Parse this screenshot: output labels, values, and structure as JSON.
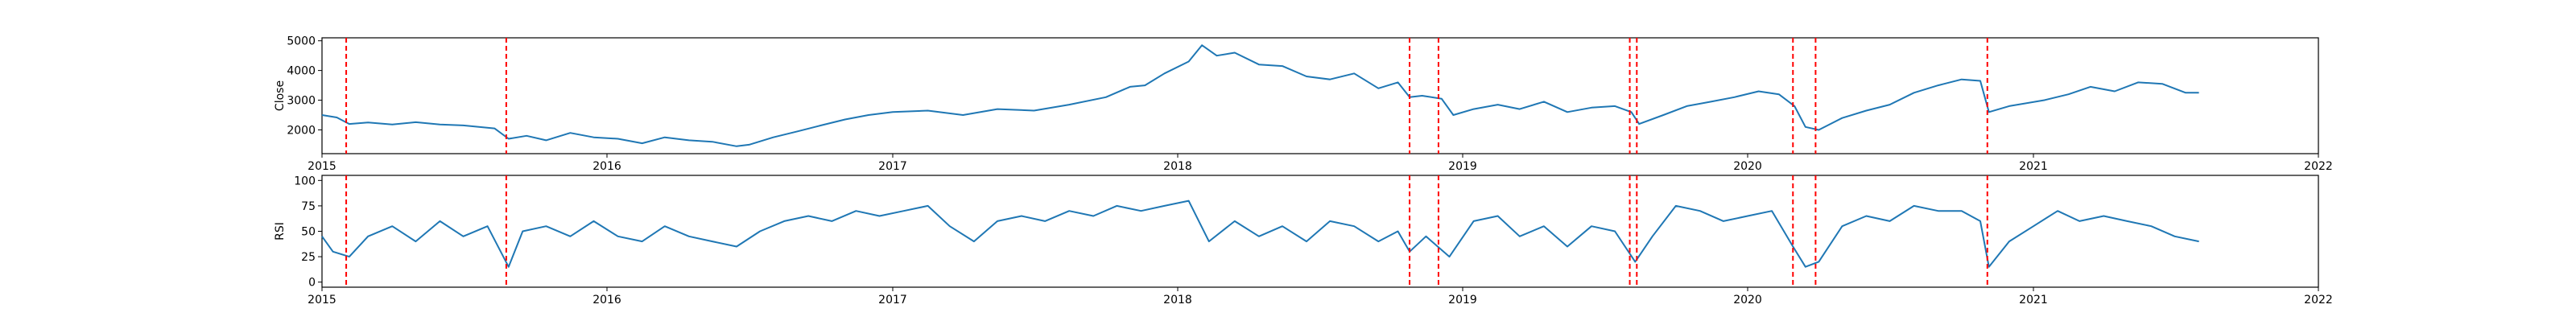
{
  "chart_data": [
    {
      "type": "line",
      "title": "",
      "xlabel": "",
      "ylabel": "Close",
      "xlim": [
        "2015-01-01",
        "2022-01-01"
      ],
      "ylim": [
        1200,
        5100
      ],
      "x_ticks": [
        "2015",
        "2016",
        "2017",
        "2018",
        "2019",
        "2020",
        "2021",
        "2022"
      ],
      "y_ticks": [
        2000,
        3000,
        4000,
        5000
      ],
      "grid": false,
      "line_color": "#1f77b4",
      "series": [
        {
          "points": [
            [
              "2015-01-01",
              2500
            ],
            [
              "2015-01-20",
              2420
            ],
            [
              "2015-02-05",
              2200
            ],
            [
              "2015-03-01",
              2250
            ],
            [
              "2015-04-01",
              2180
            ],
            [
              "2015-05-01",
              2260
            ],
            [
              "2015-06-01",
              2180
            ],
            [
              "2015-07-01",
              2150
            ],
            [
              "2015-08-10",
              2050
            ],
            [
              "2015-08-28",
              1700
            ],
            [
              "2015-09-20",
              1800
            ],
            [
              "2015-10-15",
              1650
            ],
            [
              "2015-11-15",
              1900
            ],
            [
              "2015-12-15",
              1750
            ],
            [
              "2016-01-15",
              1700
            ],
            [
              "2016-02-15",
              1550
            ],
            [
              "2016-03-15",
              1750
            ],
            [
              "2016-04-15",
              1650
            ],
            [
              "2016-05-15",
              1600
            ],
            [
              "2016-06-15",
              1450
            ],
            [
              "2016-07-01",
              1500
            ],
            [
              "2016-08-01",
              1750
            ],
            [
              "2016-09-01",
              1950
            ],
            [
              "2016-10-01",
              2150
            ],
            [
              "2016-11-01",
              2350
            ],
            [
              "2016-12-01",
              2500
            ],
            [
              "2017-01-01",
              2600
            ],
            [
              "2017-02-15",
              2650
            ],
            [
              "2017-04-01",
              2500
            ],
            [
              "2017-05-15",
              2700
            ],
            [
              "2017-07-01",
              2650
            ],
            [
              "2017-08-15",
              2850
            ],
            [
              "2017-10-01",
              3100
            ],
            [
              "2017-11-01",
              3450
            ],
            [
              "2017-11-20",
              3500
            ],
            [
              "2017-12-15",
              3900
            ],
            [
              "2018-01-15",
              4300
            ],
            [
              "2018-02-01",
              4850
            ],
            [
              "2018-02-20",
              4500
            ],
            [
              "2018-03-15",
              4600
            ],
            [
              "2018-04-15",
              4200
            ],
            [
              "2018-05-15",
              4150
            ],
            [
              "2018-06-15",
              3800
            ],
            [
              "2018-07-15",
              3700
            ],
            [
              "2018-08-15",
              3900
            ],
            [
              "2018-09-15",
              3400
            ],
            [
              "2018-10-10",
              3600
            ],
            [
              "2018-10-25",
              3100
            ],
            [
              "2018-11-10",
              3150
            ],
            [
              "2018-12-05",
              3050
            ],
            [
              "2018-12-20",
              2500
            ],
            [
              "2019-01-15",
              2700
            ],
            [
              "2019-02-15",
              2850
            ],
            [
              "2019-03-15",
              2700
            ],
            [
              "2019-04-15",
              2950
            ],
            [
              "2019-05-15",
              2600
            ],
            [
              "2019-06-15",
              2750
            ],
            [
              "2019-07-15",
              2800
            ],
            [
              "2019-08-05",
              2600
            ],
            [
              "2019-08-15",
              2200
            ],
            [
              "2019-09-15",
              2500
            ],
            [
              "2019-10-15",
              2800
            ],
            [
              "2019-11-15",
              2950
            ],
            [
              "2019-12-15",
              3100
            ],
            [
              "2020-01-15",
              3300
            ],
            [
              "2020-02-10",
              3200
            ],
            [
              "2020-03-01",
              2800
            ],
            [
              "2020-03-15",
              2100
            ],
            [
              "2020-04-01",
              2000
            ],
            [
              "2020-05-01",
              2400
            ],
            [
              "2020-06-01",
              2650
            ],
            [
              "2020-07-01",
              2850
            ],
            [
              "2020-08-01",
              3250
            ],
            [
              "2020-09-01",
              3500
            ],
            [
              "2020-10-01",
              3700
            ],
            [
              "2020-10-25",
              3650
            ],
            [
              "2020-11-05",
              2600
            ],
            [
              "2020-12-01",
              2800
            ],
            [
              "2021-01-15",
              3000
            ],
            [
              "2021-02-15",
              3200
            ],
            [
              "2021-03-15",
              3450
            ],
            [
              "2021-04-15",
              3300
            ],
            [
              "2021-05-15",
              3600
            ],
            [
              "2021-06-15",
              3550
            ],
            [
              "2021-07-15",
              3250
            ],
            [
              "2021-08-01",
              3250
            ]
          ]
        }
      ],
      "events": [
        "2015-02-01",
        "2015-08-25",
        "2018-10-25",
        "2018-12-01",
        "2019-08-03",
        "2019-08-12",
        "2020-02-28",
        "2020-03-28",
        "2020-11-03"
      ],
      "event_style": "red dashed vertical line"
    },
    {
      "type": "line",
      "title": "",
      "xlabel": "",
      "ylabel": "RSI",
      "xlim": [
        "2015-01-01",
        "2022-01-01"
      ],
      "ylim": [
        -5,
        105
      ],
      "x_ticks": [
        "2015",
        "2016",
        "2017",
        "2018",
        "2019",
        "2020",
        "2021",
        "2022"
      ],
      "y_ticks": [
        0,
        25,
        50,
        75,
        100
      ],
      "grid": false,
      "line_color": "#1f77b4",
      "series": [
        {
          "points": [
            [
              "2015-01-01",
              45
            ],
            [
              "2015-01-15",
              30
            ],
            [
              "2015-02-05",
              25
            ],
            [
              "2015-03-01",
              45
            ],
            [
              "2015-04-01",
              55
            ],
            [
              "2015-05-01",
              40
            ],
            [
              "2015-06-01",
              60
            ],
            [
              "2015-07-01",
              45
            ],
            [
              "2015-08-01",
              55
            ],
            [
              "2015-08-28",
              15
            ],
            [
              "2015-09-15",
              50
            ],
            [
              "2015-10-15",
              55
            ],
            [
              "2015-11-15",
              45
            ],
            [
              "2015-12-15",
              60
            ],
            [
              "2016-01-15",
              45
            ],
            [
              "2016-02-15",
              40
            ],
            [
              "2016-03-15",
              55
            ],
            [
              "2016-04-15",
              45
            ],
            [
              "2016-05-15",
              40
            ],
            [
              "2016-06-15",
              35
            ],
            [
              "2016-07-15",
              50
            ],
            [
              "2016-08-15",
              60
            ],
            [
              "2016-09-15",
              65
            ],
            [
              "2016-10-15",
              60
            ],
            [
              "2016-11-15",
              70
            ],
            [
              "2016-12-15",
              65
            ],
            [
              "2017-01-15",
              70
            ],
            [
              "2017-02-15",
              75
            ],
            [
              "2017-03-15",
              55
            ],
            [
              "2017-04-15",
              40
            ],
            [
              "2017-05-15",
              60
            ],
            [
              "2017-06-15",
              65
            ],
            [
              "2017-07-15",
              60
            ],
            [
              "2017-08-15",
              70
            ],
            [
              "2017-09-15",
              65
            ],
            [
              "2017-10-15",
              75
            ],
            [
              "2017-11-15",
              70
            ],
            [
              "2017-12-15",
              75
            ],
            [
              "2018-01-15",
              80
            ],
            [
              "2018-02-10",
              40
            ],
            [
              "2018-03-15",
              60
            ],
            [
              "2018-04-15",
              45
            ],
            [
              "2018-05-15",
              55
            ],
            [
              "2018-06-15",
              40
            ],
            [
              "2018-07-15",
              60
            ],
            [
              "2018-08-15",
              55
            ],
            [
              "2018-09-15",
              40
            ],
            [
              "2018-10-10",
              50
            ],
            [
              "2018-10-25",
              30
            ],
            [
              "2018-11-15",
              45
            ],
            [
              "2018-12-15",
              25
            ],
            [
              "2019-01-15",
              60
            ],
            [
              "2019-02-15",
              65
            ],
            [
              "2019-03-15",
              45
            ],
            [
              "2019-04-15",
              55
            ],
            [
              "2019-05-15",
              35
            ],
            [
              "2019-06-15",
              55
            ],
            [
              "2019-07-15",
              50
            ],
            [
              "2019-08-10",
              20
            ],
            [
              "2019-09-01",
              45
            ],
            [
              "2019-10-01",
              75
            ],
            [
              "2019-11-01",
              70
            ],
            [
              "2019-12-01",
              60
            ],
            [
              "2020-01-01",
              65
            ],
            [
              "2020-02-01",
              70
            ],
            [
              "2020-02-28",
              35
            ],
            [
              "2020-03-15",
              15
            ],
            [
              "2020-04-01",
              20
            ],
            [
              "2020-05-01",
              55
            ],
            [
              "2020-06-01",
              65
            ],
            [
              "2020-07-01",
              60
            ],
            [
              "2020-08-01",
              75
            ],
            [
              "2020-09-01",
              70
            ],
            [
              "2020-10-01",
              70
            ],
            [
              "2020-10-25",
              60
            ],
            [
              "2020-11-05",
              15
            ],
            [
              "2020-12-01",
              40
            ],
            [
              "2021-01-01",
              55
            ],
            [
              "2021-02-01",
              70
            ],
            [
              "2021-03-01",
              60
            ],
            [
              "2021-04-01",
              65
            ],
            [
              "2021-05-01",
              60
            ],
            [
              "2021-06-01",
              55
            ],
            [
              "2021-07-01",
              45
            ],
            [
              "2021-08-01",
              40
            ]
          ]
        }
      ],
      "events": [
        "2015-02-01",
        "2015-08-25",
        "2018-10-25",
        "2018-12-01",
        "2019-08-03",
        "2019-08-12",
        "2020-02-28",
        "2020-03-28",
        "2020-11-03"
      ],
      "event_style": "red dashed vertical line"
    }
  ]
}
